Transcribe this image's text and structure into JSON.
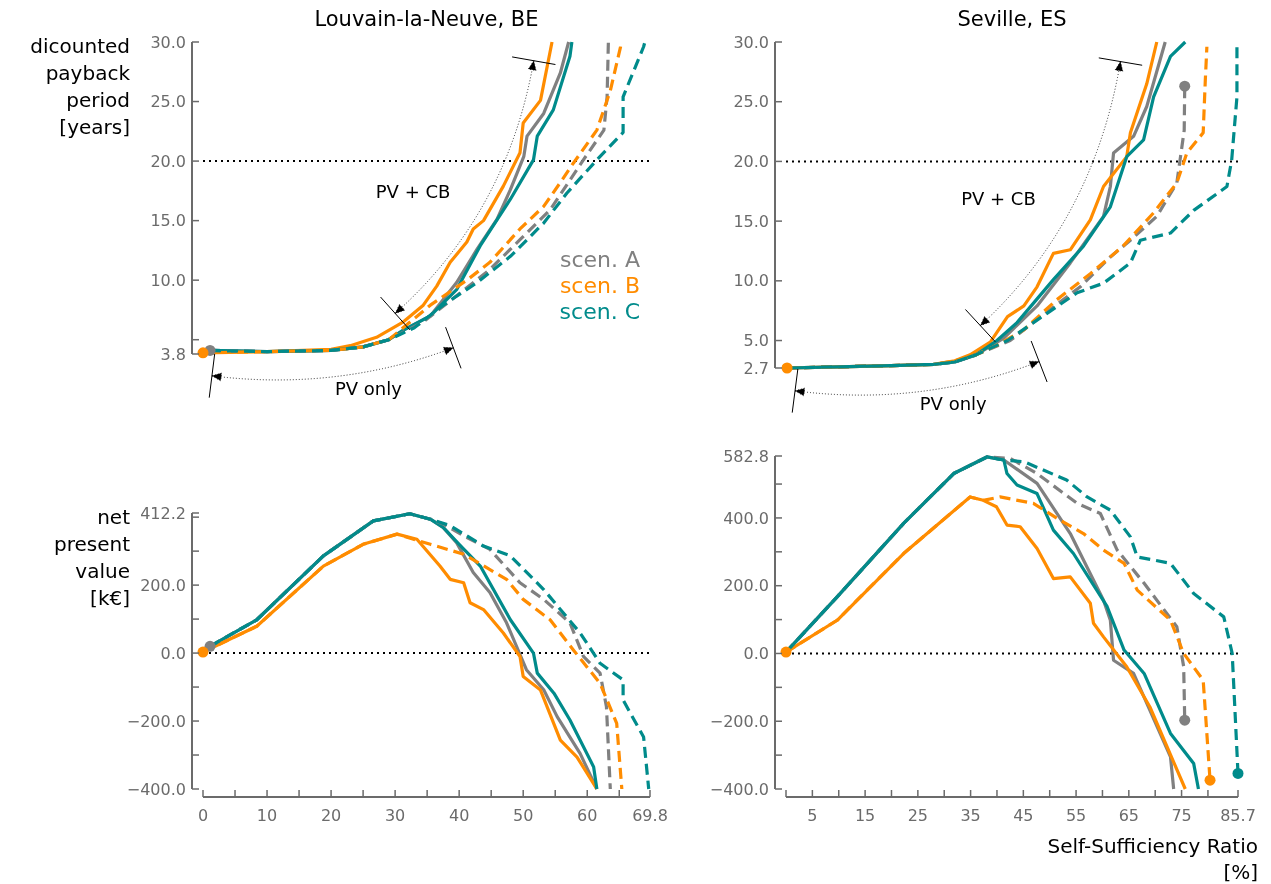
{
  "chart_data": [
    {
      "type": "line",
      "title": "Louvain-la-Neuve, BE",
      "ylabel": "dicounted\npayback\nperiod\n[years]",
      "xlim": [
        0,
        69.8
      ],
      "ylim": [
        3.8,
        30
      ],
      "tick_labels": "y",
      "legend": "right",
      "yticks": [
        3.8,
        {
          "value": 5,
          "label": null
        },
        {
          "value": 10,
          "label": "10.0"
        },
        {
          "value": 15,
          "label": "15.0"
        },
        {
          "value": 20,
          "label": "20.0"
        },
        {
          "value": 25,
          "label": "25.0"
        },
        {
          "value": 30,
          "label": "30.0"
        }
      ],
      "ref_lines": [
        {
          "axis": "y",
          "value": 20,
          "color": "#000000",
          "line_style": "dotted"
        }
      ],
      "annotations": [
        "PV + CB",
        "PV only"
      ],
      "series": [
        {
          "name": "scen. A",
          "color": "#808080",
          "line_style": "solid",
          "x": [
            1.1,
            10,
            20,
            25,
            29,
            31.3,
            35.5,
            39.6,
            42.8,
            45.9,
            48,
            50.1,
            50.6,
            53.2,
            55.8,
            57.1
          ],
          "values": [
            4.1,
            4.0,
            4.1,
            4.4,
            5.0,
            5.8,
            7.0,
            9.8,
            12.6,
            15.1,
            17.6,
            20.4,
            22.1,
            24.0,
            27.4,
            30
          ]
        },
        {
          "name": "scen. B",
          "color": "#ff8c00",
          "line_style": "solid",
          "x": [
            0,
            10,
            20,
            23,
            27.1,
            31.3,
            34.4,
            36.5,
            38.6,
            41.2,
            42.2,
            43.8,
            46.9,
            49.5,
            50,
            52.7,
            54.5
          ],
          "values": [
            3.9,
            4.0,
            4.2,
            4.5,
            5.2,
            6.5,
            7.9,
            9.5,
            11.5,
            13.2,
            14.3,
            15.0,
            17.9,
            20.7,
            23.2,
            25.1,
            30
          ]
        },
        {
          "name": "scen. C",
          "color": "#008b8b",
          "line_style": "solid",
          "x": [
            1.1,
            10,
            20,
            25,
            29,
            31.3,
            35.5,
            39.6,
            43.3,
            48,
            51.6,
            52.2,
            54.7,
            57.3,
            57.6
          ],
          "values": [
            4.1,
            4.0,
            4.1,
            4.4,
            5.0,
            5.8,
            7.0,
            9.2,
            12.9,
            16.8,
            20.1,
            22.1,
            24.3,
            28.8,
            30
          ]
        },
        {
          "color": "#808080",
          "line_style": "dashed",
          "x": [
            1.1,
            10,
            20,
            25,
            29,
            34.4,
            39.6,
            44.8,
            49.5,
            54.2,
            59.4,
            62.6,
            63.1,
            63.3
          ],
          "values": [
            4.1,
            4.0,
            4.1,
            4.4,
            5.0,
            6.5,
            8.7,
            10.9,
            13.4,
            15.9,
            20.1,
            22.6,
            25.4,
            30
          ]
        },
        {
          "color": "#ff8c00",
          "line_style": "dashed",
          "x": [
            0,
            10,
            20,
            25,
            29,
            35.5,
            41.2,
            44.8,
            49.5,
            53.2,
            55.8,
            57.8,
            61.5,
            63.6,
            65.2,
            65.3
          ],
          "values": [
            3.9,
            4.0,
            4.1,
            4.4,
            5.0,
            7.9,
            10.0,
            11.5,
            14.3,
            16.2,
            18.2,
            19.8,
            22.6,
            25.9,
            29.6,
            30
          ]
        },
        {
          "color": "#008b8b",
          "line_style": "dashed",
          "x": [
            1.1,
            10,
            20,
            25,
            29,
            33,
            37.5,
            42.8,
            48,
            53.2,
            56.8,
            61.5,
            65.6,
            65.6,
            68.8,
            69
          ],
          "values": [
            4.1,
            4.0,
            4.1,
            4.4,
            5.0,
            6.0,
            7.9,
            9.8,
            12.0,
            14.8,
            17.3,
            20.1,
            22.4,
            25.4,
            29.6,
            30
          ]
        },
        {
          "type": "scatter",
          "marker": "circle",
          "color": "#808080",
          "x": [
            1.1
          ],
          "values": [
            4.1
          ]
        },
        {
          "type": "scatter",
          "marker": "circle",
          "color": "#ff8c00",
          "x": [
            0
          ],
          "values": [
            3.9
          ]
        }
      ]
    },
    {
      "type": "line",
      "title": "Seville, ES",
      "xlim": [
        0,
        85.7
      ],
      "ylim": [
        2.7,
        30
      ],
      "tick_labels": "y",
      "yticks": [
        2.7,
        {
          "value": 5,
          "label": "5.0"
        },
        {
          "value": 10,
          "label": "10.0"
        },
        {
          "value": 15,
          "label": "15.0"
        },
        {
          "value": 20,
          "label": "20.0"
        },
        {
          "value": 25,
          "label": "25.0"
        },
        {
          "value": 30,
          "label": "30.0"
        }
      ],
      "ref_lines": [
        {
          "axis": "y",
          "value": 20,
          "color": "#000000",
          "line_style": "dotted"
        }
      ],
      "annotations": [
        "PV + CB",
        "PV only"
      ],
      "series": [
        {
          "color": "#808080",
          "line_style": "solid",
          "x": [
            0.2,
            10,
            20,
            28,
            32,
            36,
            41.3,
            47.6,
            53.9,
            60.2,
            61.5,
            62.1,
            65.9,
            68.4,
            71.9
          ],
          "values": [
            2.7,
            2.8,
            2.9,
            3.0,
            3.2,
            3.8,
            5.2,
            7.9,
            11.5,
            15.4,
            17.9,
            20.7,
            22.1,
            24.6,
            30
          ]
        },
        {
          "color": "#ff8c00",
          "line_style": "solid",
          "x": [
            0.2,
            10,
            20,
            28,
            32,
            34.9,
            38.8,
            42,
            45.1,
            47.6,
            50.7,
            53.9,
            57.7,
            60.2,
            64.6,
            65.3,
            68.4,
            70.3
          ],
          "values": [
            2.7,
            2.8,
            2.9,
            3.0,
            3.3,
            3.8,
            4.9,
            7.0,
            7.9,
            9.5,
            12.3,
            12.6,
            15.1,
            17.9,
            20.4,
            22.4,
            26.5,
            30
          ]
        },
        {
          "color": "#008b8b",
          "line_style": "solid",
          "x": [
            0.2,
            10,
            20,
            28,
            32,
            36,
            40,
            43.8,
            50.7,
            56.4,
            61.5,
            64.6,
            67.8,
            69.7,
            72.9,
            75.7
          ],
          "values": [
            2.7,
            2.8,
            2.9,
            3.0,
            3.2,
            3.8,
            5.0,
            6.5,
            10.1,
            12.9,
            16.2,
            20.4,
            21.8,
            25.4,
            28.8,
            30
          ]
        },
        {
          "color": "#808080",
          "line_style": "dashed",
          "x": [
            0.2,
            10,
            20,
            28,
            32,
            36,
            42.5,
            50.1,
            55.8,
            61.5,
            65.3,
            70.3,
            74.1,
            74.8,
            75.5,
            75.6
          ],
          "values": [
            2.7,
            2.8,
            2.9,
            3.0,
            3.2,
            3.8,
            5.0,
            7.6,
            9.5,
            12.0,
            13.4,
            15.4,
            18.2,
            20.4,
            22.6,
            26.3
          ]
        },
        {
          "color": "#ff8c00",
          "line_style": "dashed",
          "x": [
            0.2,
            10,
            20,
            28,
            32,
            36,
            40,
            45.1,
            51.3,
            57.7,
            63.9,
            69.7,
            74.1,
            76,
            79.1,
            79.5,
            79.8
          ],
          "values": [
            2.7,
            2.8,
            2.9,
            3.0,
            3.3,
            3.8,
            4.6,
            5.9,
            8.4,
            10.6,
            12.9,
            15.7,
            18.2,
            20.7,
            22.4,
            26.8,
            29.6
          ]
        },
        {
          "color": "#008b8b",
          "line_style": "dashed",
          "x": [
            0.2,
            10,
            20,
            28,
            32,
            36,
            42,
            46.9,
            55.2,
            60.2,
            65.3,
            67.2,
            72.9,
            77.3,
            83.6,
            84.5,
            85.5,
            85.5
          ],
          "values": [
            2.7,
            2.8,
            2.9,
            3.0,
            3.2,
            3.8,
            5.0,
            6.5,
            9.0,
            9.8,
            11.5,
            13.4,
            14.0,
            15.9,
            17.9,
            20.1,
            25.4,
            30
          ]
        },
        {
          "type": "scatter",
          "marker": "circle",
          "color": "#808080",
          "x": [
            75.6
          ],
          "values": [
            26.3
          ]
        },
        {
          "type": "scatter",
          "marker": "circle",
          "color": "#ff8c00",
          "x": [
            0.2
          ],
          "values": [
            2.7
          ]
        }
      ]
    },
    {
      "type": "line",
      "ylabel": "net\npresent\nvalue\n[k€]",
      "xlim": [
        0,
        69.8
      ],
      "ylim": [
        -400,
        412.2
      ],
      "xticks": [
        0,
        {
          "value": 5,
          "label": null
        },
        10,
        {
          "value": 15,
          "label": null
        },
        20,
        {
          "value": 25,
          "label": null
        },
        30,
        {
          "value": 35,
          "label": null
        },
        40,
        {
          "value": 45,
          "label": null
        },
        50,
        {
          "value": 55,
          "label": null
        },
        60,
        {
          "value": 65,
          "label": null
        },
        69.8
      ],
      "yticks": [
        {
          "value": -400,
          "label": "−400.0"
        },
        {
          "value": -300,
          "label": null
        },
        {
          "value": -200,
          "label": "−200.0"
        },
        {
          "value": -100,
          "label": null
        },
        {
          "value": 0,
          "label": "0.0"
        },
        {
          "value": 100,
          "label": null
        },
        {
          "value": 200,
          "label": "200.0"
        },
        {
          "value": 300,
          "label": null
        },
        {
          "value": 400,
          "label": null
        },
        412.2
      ],
      "ref_lines": [
        {
          "axis": "y",
          "value": 0,
          "color": "#000000",
          "line_style": "dotted"
        }
      ],
      "series": [
        {
          "color": "#808080",
          "line_style": "solid",
          "x": [
            1.1,
            8.4,
            18.8,
            26.6,
            32.3,
            35.5,
            37.5,
            39.6,
            42.2,
            44.8,
            47.4,
            50.5,
            53.2,
            55.3,
            58.9,
            61.5
          ],
          "values": [
            20,
            98,
            286,
            389,
            410,
            394,
            370,
            325,
            237,
            178,
            89,
            -49,
            -108,
            -187,
            -296,
            -400
          ]
        },
        {
          "color": "#ff8c00",
          "line_style": "solid",
          "x": [
            0,
            8.4,
            18.8,
            25,
            30.3,
            33.4,
            37,
            38.6,
            40.7,
            41.7,
            43.8,
            46.9,
            49.5,
            50,
            52.7,
            55.8,
            58.4,
            61.5
          ],
          "values": [
            3,
            79,
            256,
            320,
            350,
            335,
            256,
            217,
            207,
            148,
            128,
            59,
            -10,
            -69,
            -109,
            -256,
            -306,
            -400
          ]
        },
        {
          "color": "#008b8b",
          "line_style": "solid",
          "x": [
            1.1,
            8.4,
            18.8,
            26.6,
            32.3,
            35.5,
            37.5,
            40,
            43.3,
            48,
            51.6,
            52.2,
            54.8,
            57.3,
            61,
            61.5
          ],
          "values": [
            20,
            98,
            286,
            389,
            410,
            394,
            370,
            320,
            256,
            98,
            0,
            -59,
            -118,
            -197,
            -335,
            -400
          ]
        },
        {
          "color": "#808080",
          "line_style": "dashed",
          "x": [
            1.1,
            8.4,
            18.8,
            26.6,
            32.3,
            35.5,
            37.5,
            40.7,
            44.8,
            49.5,
            53.2,
            57.3,
            59.4,
            62,
            63,
            63.6
          ],
          "values": [
            20,
            98,
            286,
            389,
            410,
            394,
            380,
            345,
            305,
            207,
            158,
            89,
            -10,
            -59,
            -158,
            -400
          ]
        },
        {
          "color": "#ff8c00",
          "line_style": "dashed",
          "x": [
            0,
            8.4,
            18.8,
            25,
            30.3,
            35.5,
            40.7,
            47.4,
            50,
            54.2,
            57.8,
            62,
            64.6,
            65.4
          ],
          "values": [
            3,
            79,
            256,
            320,
            350,
            320,
            291,
            217,
            158,
            98,
            10,
            -89,
            -207,
            -400
          ]
        },
        {
          "color": "#008b8b",
          "line_style": "dashed",
          "x": [
            1.1,
            8.4,
            18.8,
            26.6,
            32.3,
            35.5,
            38.6,
            43.8,
            48,
            53.2,
            58.9,
            62,
            65.6,
            65.6,
            68.8,
            69.6
          ],
          "values": [
            20,
            98,
            286,
            389,
            410,
            394,
            375,
            315,
            286,
            187,
            59,
            -30,
            -79,
            -138,
            -247,
            -400
          ]
        },
        {
          "type": "scatter",
          "marker": "circle",
          "color": "#808080",
          "x": [
            1.1
          ],
          "values": [
            20
          ]
        },
        {
          "type": "scatter",
          "marker": "circle",
          "color": "#ff8c00",
          "x": [
            0
          ],
          "values": [
            3
          ]
        }
      ]
    },
    {
      "type": "line",
      "xlabel": "Self-Sufficiency Ratio\n[%]",
      "xlim": [
        0,
        85.7
      ],
      "ylim": [
        -400,
        582.8
      ],
      "xticks": [
        {
          "value": 0,
          "label": null
        },
        5,
        {
          "value": 10,
          "label": null
        },
        15,
        {
          "value": 20,
          "label": null
        },
        25,
        {
          "value": 30,
          "label": null
        },
        35,
        {
          "value": 40,
          "label": null
        },
        45,
        {
          "value": 50,
          "label": null
        },
        55,
        {
          "value": 60,
          "label": null
        },
        65,
        {
          "value": 70,
          "label": null
        },
        75,
        {
          "value": 80,
          "label": null
        },
        85.7
      ],
      "yticks": [
        {
          "value": -400,
          "label": "−400.0"
        },
        {
          "value": -300,
          "label": null
        },
        {
          "value": -200,
          "label": "−200.0"
        },
        {
          "value": -100,
          "label": null
        },
        {
          "value": 0,
          "label": "0.0"
        },
        {
          "value": 100,
          "label": null
        },
        {
          "value": 200,
          "label": "200.0"
        },
        {
          "value": 300,
          "label": null
        },
        {
          "value": 400,
          "label": "400.0"
        },
        {
          "value": 500,
          "label": null
        },
        582.8
      ],
      "ref_lines": [
        {
          "axis": "y",
          "value": 0,
          "color": "#000000",
          "line_style": "dotted"
        }
      ],
      "series": [
        {
          "color": "#808080",
          "line_style": "solid",
          "x": [
            0,
            9.7,
            22.3,
            31.8,
            38.1,
            41.3,
            47.6,
            53.9,
            60.2,
            61.5,
            62.1,
            65.9,
            72.9,
            73.5
          ],
          "values": [
            4,
            167,
            384,
            531,
            580,
            571,
            502,
            354,
            157,
            98,
            -20,
            -59,
            -305,
            -400
          ]
        },
        {
          "color": "#ff8c00",
          "line_style": "solid",
          "x": [
            0,
            9.7,
            22.3,
            34.9,
            37.4,
            39.9,
            41.9,
            44.4,
            47.6,
            50.7,
            53.9,
            57.7,
            58.3,
            60.2,
            64.6,
            69,
            75.7
          ],
          "values": [
            4,
            98,
            295,
            462,
            452,
            433,
            379,
            374,
            310,
            221,
            226,
            148,
            89,
            49,
            -39,
            -158,
            -400
          ]
        },
        {
          "color": "#008b8b",
          "line_style": "solid",
          "x": [
            0,
            9.7,
            22.3,
            31.8,
            38.1,
            41.3,
            41.9,
            43.8,
            47.6,
            50.7,
            54.5,
            60.9,
            64.1,
            67.9,
            72.9,
            77.3,
            78.2
          ],
          "values": [
            4,
            167,
            384,
            531,
            580,
            571,
            531,
            497,
            472,
            364,
            295,
            138,
            10,
            -59,
            -236,
            -325,
            -400
          ]
        },
        {
          "color": "#808080",
          "line_style": "dashed",
          "x": [
            0,
            9.7,
            22.3,
            31.8,
            38.1,
            42.5,
            47.6,
            55.2,
            59.6,
            62.8,
            67.9,
            74.1,
            75.4,
            75.6
          ],
          "values": [
            4,
            167,
            384,
            531,
            580,
            576,
            531,
            443,
            413,
            305,
            207,
            79,
            -39,
            -197
          ]
        },
        {
          "color": "#ff8c00",
          "line_style": "dashed",
          "x": [
            0,
            9.7,
            22.3,
            34.9,
            37.4,
            40.6,
            46.9,
            52,
            56.4,
            60.2,
            64.1,
            66.6,
            72.9,
            75.4,
            79.1,
            80.4
          ],
          "values": [
            4,
            98,
            295,
            462,
            452,
            462,
            443,
            393,
            354,
            305,
            266,
            187,
            98,
            0,
            -79,
            -374
          ]
        },
        {
          "color": "#008b8b",
          "line_style": "dashed",
          "x": [
            0,
            9.7,
            22.3,
            31.8,
            38.1,
            41.3,
            45.1,
            53.2,
            57.1,
            61.5,
            65.3,
            66.6,
            72.9,
            77.3,
            83,
            84.6,
            85.7
          ],
          "values": [
            4,
            167,
            384,
            531,
            580,
            571,
            566,
            512,
            462,
            423,
            344,
            285,
            266,
            177,
            108,
            0,
            -354
          ]
        },
        {
          "type": "scatter",
          "marker": "circle",
          "color": "#808080",
          "x": [
            75.6
          ],
          "values": [
            -197
          ]
        },
        {
          "type": "scatter",
          "marker": "circle",
          "color": "#ff8c00",
          "x": [
            80.4,
            0
          ],
          "values": [
            -374,
            4
          ]
        },
        {
          "type": "scatter",
          "marker": "circle",
          "color": "#008b8b",
          "x": [
            85.7
          ],
          "values": [
            -354
          ]
        }
      ]
    }
  ]
}
